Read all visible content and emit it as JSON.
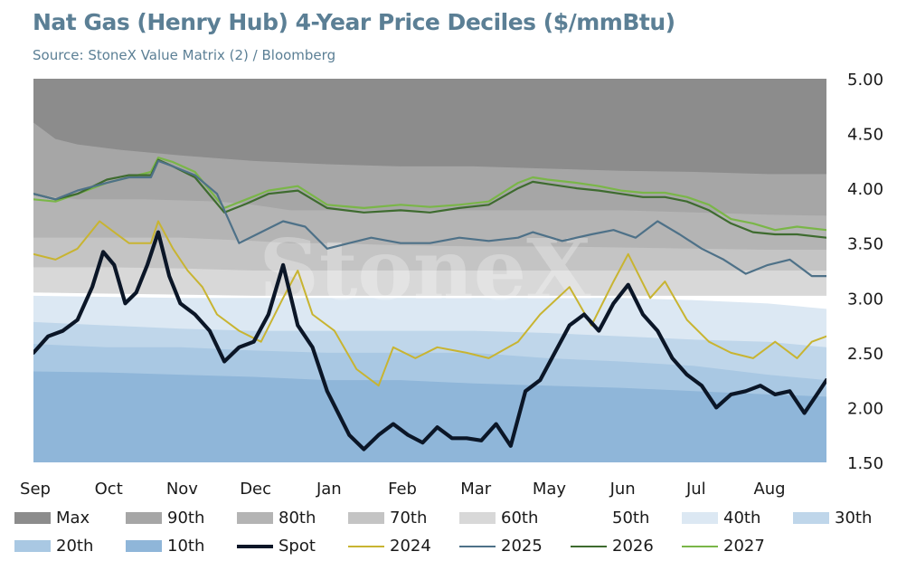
{
  "title": "Nat Gas (Henry Hub) 4-Year Price Deciles ($/mmBtu)",
  "subtitle": "Source: StoneX Value Matrix (2) / Bloomberg",
  "watermark": "StoneX",
  "chart_data": {
    "type": "area",
    "title": "Nat Gas (Henry Hub) 4-Year Price Deciles ($/mmBtu)",
    "x_categories": [
      "Sep",
      "Oct",
      "Nov",
      "Dec",
      "Jan",
      "Feb",
      "Mar",
      "May",
      "Jun",
      "Jul",
      "Aug"
    ],
    "x_range": [
      0,
      10.8
    ],
    "ylim": [
      1.5,
      5.0
    ],
    "y_ticks": [
      "5.00",
      "4.50",
      "4.00",
      "3.50",
      "3.00",
      "2.50",
      "2.00",
      "1.50"
    ],
    "y_axis_side": "right",
    "grid": false,
    "legend_position": "bottom",
    "bands": [
      {
        "name": "Max",
        "color": "#8c8c8c",
        "x": [
          0,
          10.8
        ],
        "values": [
          5.0,
          5.0
        ]
      },
      {
        "name": "90th",
        "color": "#a6a6a6",
        "x": [
          0,
          0.1,
          0.3,
          0.6,
          1.2,
          2.0,
          3.0,
          4.0,
          5.0,
          6.0,
          7.0,
          8.0,
          9.0,
          10.0,
          10.8
        ],
        "values": [
          4.6,
          4.55,
          4.45,
          4.4,
          4.35,
          4.3,
          4.25,
          4.22,
          4.2,
          4.2,
          4.18,
          4.16,
          4.15,
          4.13,
          4.13
        ]
      },
      {
        "name": "80th",
        "color": "#b4b4b4",
        "x": [
          0,
          0.3,
          0.6,
          1.5,
          2.5,
          3.0,
          3.5,
          4.0,
          5.0,
          6.0,
          7.0,
          8.0,
          9.0,
          10.0,
          10.8
        ],
        "values": [
          3.95,
          3.92,
          3.9,
          3.9,
          3.88,
          3.85,
          3.8,
          3.8,
          3.8,
          3.8,
          3.8,
          3.8,
          3.78,
          3.76,
          3.75
        ]
      },
      {
        "name": "70th",
        "color": "#c4c4c4",
        "x": [
          0,
          1,
          2,
          3,
          3.5,
          4,
          5,
          6,
          7,
          8,
          9,
          10,
          10.8
        ],
        "values": [
          3.55,
          3.55,
          3.55,
          3.52,
          3.5,
          3.5,
          3.48,
          3.47,
          3.47,
          3.46,
          3.45,
          3.44,
          3.44
        ]
      },
      {
        "name": "60th",
        "color": "#d8d8d8",
        "x": [
          0,
          1,
          2,
          3,
          3.5,
          4,
          5,
          6,
          7,
          8,
          9,
          10,
          10.8
        ],
        "values": [
          3.28,
          3.28,
          3.27,
          3.25,
          3.25,
          3.25,
          3.25,
          3.25,
          3.25,
          3.25,
          3.25,
          3.25,
          3.25
        ]
      },
      {
        "name": "50th",
        "color": "#ffffff",
        "x": [
          0,
          1,
          2,
          3,
          4,
          5,
          6,
          7,
          8,
          9,
          10,
          10.8
        ],
        "values": [
          3.05,
          3.04,
          3.03,
          3.02,
          3.02,
          3.02,
          3.02,
          3.02,
          3.02,
          3.02,
          3.02,
          3.02
        ]
      },
      {
        "name": "40th",
        "color": "#dce8f3",
        "x": [
          0,
          1,
          2,
          3,
          4,
          5,
          6,
          7,
          8,
          9,
          10,
          10.8
        ],
        "values": [
          3.02,
          3.01,
          3.0,
          3.0,
          3.0,
          3.0,
          3.0,
          3.0,
          3.0,
          2.98,
          2.95,
          2.9
        ]
      },
      {
        "name": "30th",
        "color": "#bfd6ea",
        "x": [
          0,
          1,
          2,
          3,
          4,
          5,
          6,
          7,
          8,
          9,
          10,
          10.8
        ],
        "values": [
          2.78,
          2.75,
          2.72,
          2.7,
          2.7,
          2.7,
          2.7,
          2.68,
          2.65,
          2.62,
          2.6,
          2.55
        ]
      },
      {
        "name": "20th",
        "color": "#a9c8e3",
        "x": [
          0,
          1,
          2,
          3,
          4,
          5,
          6,
          7,
          8,
          9,
          10,
          10.8
        ],
        "values": [
          2.58,
          2.55,
          2.55,
          2.52,
          2.5,
          2.5,
          2.5,
          2.45,
          2.42,
          2.38,
          2.3,
          2.25
        ]
      },
      {
        "name": "10th",
        "color": "#8fb6d9",
        "x": [
          0,
          1,
          2,
          3,
          4,
          5,
          6,
          7,
          8,
          9,
          10,
          10.8
        ],
        "values": [
          2.33,
          2.32,
          2.3,
          2.28,
          2.25,
          2.25,
          2.22,
          2.2,
          2.18,
          2.15,
          2.12,
          2.1
        ]
      }
    ],
    "series": [
      {
        "name": "2027",
        "color": "#7ab648",
        "width": 2.2,
        "x": [
          0,
          0.3,
          0.6,
          1.0,
          1.3,
          1.6,
          1.7,
          1.9,
          2.2,
          2.6,
          2.9,
          3.2,
          3.6,
          4.0,
          4.5,
          5.0,
          5.4,
          5.8,
          6.2,
          6.6,
          6.8,
          7.0,
          7.4,
          7.7,
          8.0,
          8.3,
          8.6,
          8.9,
          9.2,
          9.5,
          9.8,
          10.1,
          10.4,
          10.8
        ],
        "values": [
          3.9,
          3.88,
          3.95,
          4.05,
          4.1,
          4.15,
          4.28,
          4.24,
          4.15,
          3.82,
          3.9,
          3.98,
          4.02,
          3.85,
          3.82,
          3.85,
          3.83,
          3.85,
          3.88,
          4.05,
          4.1,
          4.08,
          4.05,
          4.02,
          3.98,
          3.96,
          3.96,
          3.92,
          3.85,
          3.72,
          3.68,
          3.62,
          3.65,
          3.62
        ]
      },
      {
        "name": "2026",
        "color": "#3e6b2f",
        "width": 2.2,
        "x": [
          0,
          0.3,
          0.6,
          1.0,
          1.3,
          1.6,
          1.7,
          1.9,
          2.2,
          2.6,
          2.9,
          3.2,
          3.6,
          4.0,
          4.5,
          5.0,
          5.4,
          5.8,
          6.2,
          6.6,
          6.8,
          7.0,
          7.4,
          7.7,
          8.0,
          8.3,
          8.6,
          8.9,
          9.2,
          9.5,
          9.8,
          10.1,
          10.4,
          10.8
        ],
        "values": [
          3.95,
          3.9,
          3.95,
          4.08,
          4.12,
          4.12,
          4.26,
          4.2,
          4.1,
          3.78,
          3.86,
          3.95,
          3.98,
          3.82,
          3.78,
          3.8,
          3.78,
          3.82,
          3.85,
          4.0,
          4.06,
          4.04,
          4.0,
          3.98,
          3.95,
          3.92,
          3.92,
          3.88,
          3.8,
          3.68,
          3.6,
          3.58,
          3.58,
          3.55
        ]
      },
      {
        "name": "2025",
        "color": "#4e7188",
        "width": 2.2,
        "x": [
          0,
          0.3,
          0.6,
          1.0,
          1.3,
          1.6,
          1.7,
          1.9,
          2.2,
          2.5,
          2.8,
          3.1,
          3.4,
          3.7,
          4.0,
          4.3,
          4.6,
          5.0,
          5.4,
          5.8,
          6.2,
          6.6,
          6.8,
          7.2,
          7.6,
          7.9,
          8.2,
          8.5,
          8.8,
          9.1,
          9.4,
          9.7,
          10.0,
          10.3,
          10.6,
          10.8
        ],
        "values": [
          3.95,
          3.9,
          3.98,
          4.05,
          4.1,
          4.1,
          4.25,
          4.2,
          4.12,
          3.95,
          3.5,
          3.6,
          3.7,
          3.65,
          3.45,
          3.5,
          3.55,
          3.5,
          3.5,
          3.55,
          3.52,
          3.55,
          3.6,
          3.52,
          3.58,
          3.62,
          3.55,
          3.7,
          3.58,
          3.45,
          3.35,
          3.22,
          3.3,
          3.35,
          3.2,
          3.2
        ]
      },
      {
        "name": "2024",
        "color": "#c8b431",
        "width": 2.0,
        "x": [
          0,
          0.3,
          0.6,
          0.9,
          1.1,
          1.3,
          1.6,
          1.7,
          1.9,
          2.1,
          2.3,
          2.5,
          2.8,
          3.1,
          3.4,
          3.6,
          3.8,
          4.1,
          4.4,
          4.7,
          4.9,
          5.2,
          5.5,
          5.9,
          6.2,
          6.6,
          6.9,
          7.3,
          7.6,
          7.9,
          8.1,
          8.4,
          8.6,
          8.9,
          9.2,
          9.5,
          9.8,
          10.1,
          10.4,
          10.6,
          10.8
        ],
        "values": [
          3.4,
          3.35,
          3.45,
          3.7,
          3.6,
          3.5,
          3.5,
          3.7,
          3.45,
          3.25,
          3.1,
          2.85,
          2.7,
          2.6,
          3.0,
          3.25,
          2.85,
          2.7,
          2.35,
          2.2,
          2.55,
          2.45,
          2.55,
          2.5,
          2.45,
          2.6,
          2.85,
          3.1,
          2.75,
          3.15,
          3.4,
          3.0,
          3.15,
          2.8,
          2.6,
          2.5,
          2.45,
          2.6,
          2.45,
          2.6,
          2.65
        ]
      },
      {
        "name": "Spot",
        "color": "#0b1627",
        "width": 4.2,
        "x": [
          0,
          0.2,
          0.4,
          0.6,
          0.8,
          0.95,
          1.1,
          1.25,
          1.4,
          1.55,
          1.7,
          1.85,
          2.0,
          2.2,
          2.4,
          2.6,
          2.8,
          3.0,
          3.2,
          3.4,
          3.6,
          3.8,
          4.0,
          4.15,
          4.3,
          4.5,
          4.7,
          4.9,
          5.1,
          5.3,
          5.5,
          5.7,
          5.9,
          6.1,
          6.3,
          6.5,
          6.7,
          6.9,
          7.1,
          7.3,
          7.5,
          7.7,
          7.9,
          8.1,
          8.3,
          8.5,
          8.7,
          8.9,
          9.1,
          9.3,
          9.5,
          9.7,
          9.9,
          10.1,
          10.3,
          10.5,
          10.7,
          10.8
        ],
        "values": [
          2.5,
          2.65,
          2.7,
          2.8,
          3.1,
          3.42,
          3.3,
          2.95,
          3.05,
          3.3,
          3.6,
          3.2,
          2.95,
          2.85,
          2.7,
          2.42,
          2.55,
          2.6,
          2.85,
          3.3,
          2.75,
          2.55,
          2.15,
          1.95,
          1.75,
          1.62,
          1.75,
          1.85,
          1.75,
          1.68,
          1.82,
          1.72,
          1.72,
          1.7,
          1.85,
          1.65,
          2.15,
          2.25,
          2.5,
          2.75,
          2.85,
          2.7,
          2.95,
          3.12,
          2.85,
          2.7,
          2.45,
          2.3,
          2.2,
          2.0,
          2.12,
          2.15,
          2.2,
          2.12,
          2.15,
          1.95,
          2.15,
          2.25
        ]
      }
    ],
    "legend": [
      {
        "name": "Max",
        "kind": "band",
        "color": "#8c8c8c"
      },
      {
        "name": "90th",
        "kind": "band",
        "color": "#a6a6a6"
      },
      {
        "name": "80th",
        "kind": "band",
        "color": "#b4b4b4"
      },
      {
        "name": "70th",
        "kind": "band",
        "color": "#c4c4c4"
      },
      {
        "name": "60th",
        "kind": "band",
        "color": "#d8d8d8"
      },
      {
        "name": "50th",
        "kind": "band",
        "color": "#ffffff"
      },
      {
        "name": "40th",
        "kind": "band",
        "color": "#dce8f3"
      },
      {
        "name": "30th",
        "kind": "band",
        "color": "#bfd6ea"
      },
      {
        "name": "20th",
        "kind": "band",
        "color": "#a9c8e3"
      },
      {
        "name": "10th",
        "kind": "band",
        "color": "#8fb6d9"
      },
      {
        "name": "Spot",
        "kind": "line",
        "color": "#0b1627"
      },
      {
        "name": "2024",
        "kind": "line",
        "color": "#c8b431"
      },
      {
        "name": "2025",
        "kind": "line",
        "color": "#4e7188"
      },
      {
        "name": "2026",
        "kind": "line",
        "color": "#3e6b2f"
      },
      {
        "name": "2027",
        "kind": "line",
        "color": "#7ab648"
      }
    ]
  }
}
